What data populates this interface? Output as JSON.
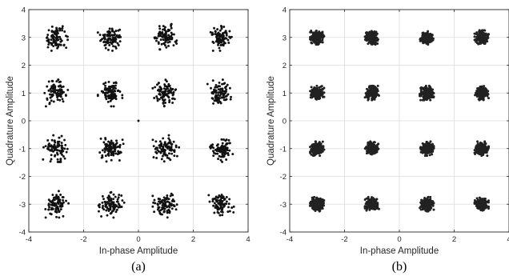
{
  "chart_data": [
    {
      "type": "scatter",
      "panel_label": "(a)",
      "xlabel": "In-phase Amplitude",
      "ylabel": "Quadrature Amplitude",
      "xlim": [
        -4,
        4
      ],
      "ylim": [
        -4,
        4
      ],
      "xticks": [
        "-4",
        "-2",
        "0",
        "2",
        "4"
      ],
      "yticks": [
        "-4",
        "-3",
        "-2",
        "-1",
        "0",
        "1",
        "2",
        "3",
        "4"
      ],
      "grid": true,
      "constellation_points": [
        -3,
        -1,
        1,
        3
      ],
      "cluster_spread": 0.32,
      "points_per_cluster": 90,
      "extra_points": [
        [
          0,
          0
        ]
      ],
      "marker_color": "#111111"
    },
    {
      "type": "scatter",
      "panel_label": "(b)",
      "xlabel": "In-phase Amplitude",
      "ylabel": "Quadrature Amplitude",
      "xlim": [
        -4,
        4
      ],
      "ylim": [
        -4,
        4
      ],
      "xticks": [
        "-4",
        "-2",
        "0",
        "2",
        "4"
      ],
      "yticks": [
        "-4",
        "-3",
        "-2",
        "-1",
        "0",
        "1",
        "2",
        "3",
        "4"
      ],
      "grid": true,
      "constellation_points": [
        -3,
        -1,
        1,
        3
      ],
      "cluster_spread": 0.17,
      "points_per_cluster": 220,
      "extra_points": [],
      "marker_color": "#222222"
    }
  ],
  "colors": {
    "axis": "#262626",
    "grid": "#dcdcdc"
  }
}
